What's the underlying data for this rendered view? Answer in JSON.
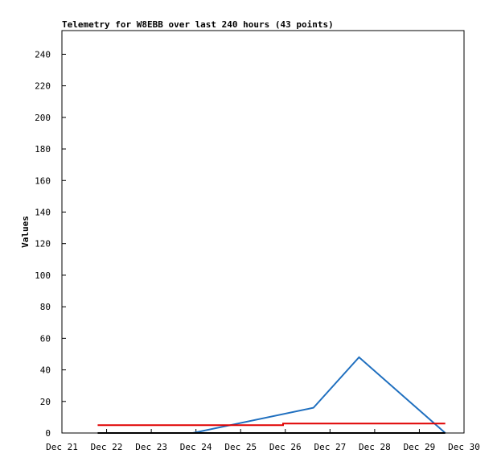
{
  "chart_data": {
    "type": "line",
    "title": "Telemetry for W8EBB over last 240 hours (43 points)",
    "y_label": "Values",
    "xlim": [
      21,
      30
    ],
    "xticks": [
      {
        "value": 21,
        "label": "Dec 21"
      },
      {
        "value": 22,
        "label": "Dec 22"
      },
      {
        "value": 23,
        "label": "Dec 23"
      },
      {
        "value": 24,
        "label": "Dec 24"
      },
      {
        "value": 25,
        "label": "Dec 25"
      },
      {
        "value": 26,
        "label": "Dec 26"
      },
      {
        "value": 27,
        "label": "Dec 27"
      },
      {
        "value": 28,
        "label": "Dec 28"
      },
      {
        "value": 29,
        "label": "Dec 29"
      },
      {
        "value": 30,
        "label": "Dec 30"
      }
    ],
    "ylim": [
      0,
      255
    ],
    "yticks": [
      0,
      20,
      40,
      60,
      80,
      100,
      120,
      140,
      160,
      180,
      200,
      220,
      240
    ],
    "series": [
      {
        "color": "#1f6fbf",
        "x": [
          23.93,
          26.63,
          27.65,
          29.58
        ],
        "values": [
          0,
          16,
          48,
          0
        ]
      },
      {
        "color": "#e00000",
        "x": [
          21.8,
          25.95,
          25.95,
          29.58
        ],
        "values": [
          5,
          5,
          6,
          6
        ]
      },
      {
        "color": "#000000",
        "x": [
          21.8,
          29.58
        ],
        "values": [
          0,
          0
        ]
      }
    ]
  }
}
